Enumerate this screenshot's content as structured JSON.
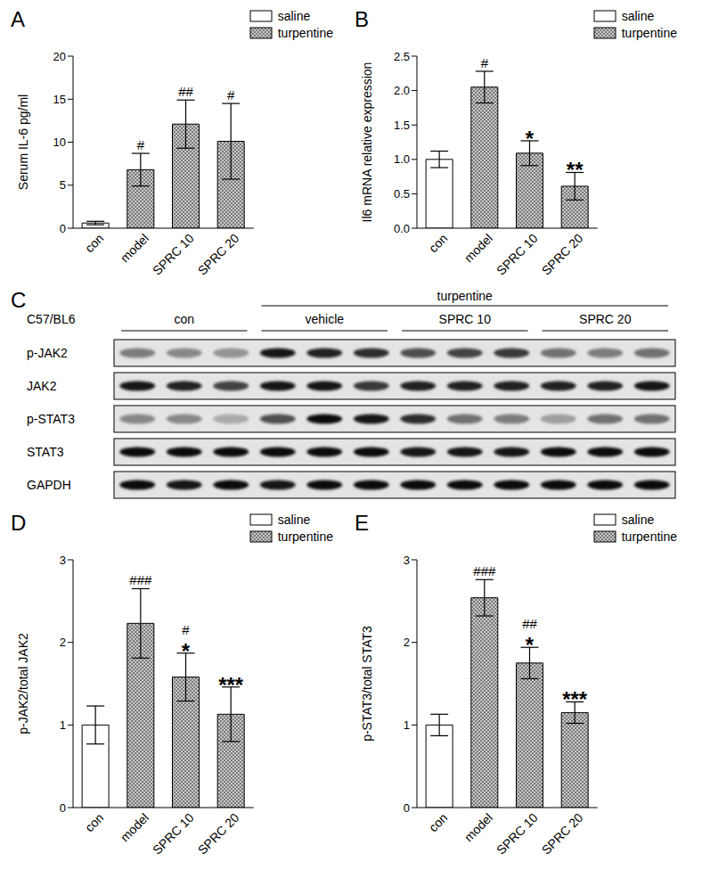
{
  "chart_data": [
    {
      "type": "bar",
      "title": "A",
      "y_label": "Serum IL-6 pg/ml",
      "categories": [
        "con",
        "model",
        "SPRC 10",
        "SPRC 20"
      ],
      "series": [
        {
          "name": "saline",
          "color": "#ffffff",
          "values": [
            0.6,
            null,
            null,
            null
          ],
          "errors": [
            0.2,
            null,
            null,
            null
          ]
        },
        {
          "name": "turpentine",
          "color": "#c8c8c8",
          "values": [
            null,
            6.8,
            12.1,
            10.1
          ],
          "errors": [
            null,
            1.9,
            2.8,
            4.4
          ]
        }
      ],
      "annotations": [
        [],
        [
          "#"
        ],
        [
          "##"
        ],
        [
          "#"
        ]
      ],
      "ylim": [
        0,
        20
      ],
      "yticks": [
        0,
        5,
        10,
        15,
        20
      ],
      "legend": "upper right"
    },
    {
      "type": "bar",
      "title": "B",
      "y_label": "Il6 mRNA relative expression",
      "categories": [
        "con",
        "model",
        "SPRC 10",
        "SPRC 20"
      ],
      "series": [
        {
          "name": "saline",
          "color": "#ffffff",
          "values": [
            1.0,
            null,
            null,
            null
          ],
          "errors": [
            0.12,
            null,
            null,
            null
          ]
        },
        {
          "name": "turpentine",
          "color": "#c8c8c8",
          "values": [
            null,
            2.05,
            1.09,
            0.61
          ],
          "errors": [
            null,
            0.23,
            0.18,
            0.2
          ]
        }
      ],
      "annotations": [
        [],
        [
          "#"
        ],
        [
          "*"
        ],
        [
          "**"
        ]
      ],
      "ylim": [
        0,
        2.5
      ],
      "yticks": [
        {
          "value": 0,
          "label": "0.0"
        },
        {
          "value": 0.5,
          "label": "0.5"
        },
        {
          "value": 1,
          "label": "1.0"
        },
        {
          "value": 1.5,
          "label": "1.5"
        },
        {
          "value": 2,
          "label": "2.0"
        },
        {
          "value": 2.5,
          "label": "2.5"
        }
      ],
      "legend": "upper right"
    },
    {
      "type": "bar",
      "title": "D",
      "y_label": "p-JAK2/total JAK2",
      "categories": [
        "con",
        "model",
        "SPRC 10",
        "SPRC 20"
      ],
      "series": [
        {
          "name": "saline",
          "color": "#ffffff",
          "values": [
            1.0,
            null,
            null,
            null
          ],
          "errors": [
            0.23,
            null,
            null,
            null
          ]
        },
        {
          "name": "turpentine",
          "color": "#c8c8c8",
          "values": [
            null,
            2.23,
            1.58,
            1.13
          ],
          "errors": [
            null,
            0.42,
            0.29,
            0.33
          ]
        }
      ],
      "annotations": [
        [],
        [
          "###"
        ],
        [
          "#",
          "*"
        ],
        [
          "***"
        ]
      ],
      "ylim": [
        0,
        3
      ],
      "yticks": [
        0,
        1,
        2,
        3
      ],
      "legend": "upper right"
    },
    {
      "type": "bar",
      "title": "E",
      "y_label": "p-STAT3/total STAT3",
      "categories": [
        "con",
        "model",
        "SPRC 10",
        "SPRC 20"
      ],
      "series": [
        {
          "name": "saline",
          "color": "#ffffff",
          "values": [
            1.0,
            null,
            null,
            null
          ],
          "errors": [
            0.13,
            null,
            null,
            null
          ]
        },
        {
          "name": "turpentine",
          "color": "#c8c8c8",
          "values": [
            null,
            2.54,
            1.75,
            1.15
          ],
          "errors": [
            null,
            0.22,
            0.19,
            0.13
          ]
        }
      ],
      "annotations": [
        [],
        [
          "###"
        ],
        [
          "##",
          "*"
        ],
        [
          "***"
        ]
      ],
      "ylim": [
        0,
        3
      ],
      "yticks": [
        0,
        1,
        2,
        3
      ],
      "legend": "upper right"
    }
  ],
  "blot": {
    "title": "C",
    "strain": "C57/BL6",
    "treatment": "turpentine",
    "groups": [
      {
        "label": "con",
        "lanes": 3,
        "treated": false
      },
      {
        "label": "vehicle",
        "lanes": 3,
        "treated": true
      },
      {
        "label": "SPRC 10",
        "lanes": 3,
        "treated": true
      },
      {
        "label": "SPRC 20",
        "lanes": 3,
        "treated": true
      }
    ],
    "rows": [
      {
        "label": "p-JAK2",
        "bands": [
          0.45,
          0.4,
          0.35,
          0.9,
          0.85,
          0.8,
          0.65,
          0.7,
          0.75,
          0.5,
          0.45,
          0.5
        ]
      },
      {
        "label": "JAK2",
        "bands": [
          0.9,
          0.85,
          0.7,
          0.9,
          0.9,
          0.75,
          0.85,
          0.85,
          0.85,
          0.85,
          0.85,
          0.9
        ]
      },
      {
        "label": "p-STAT3",
        "bands": [
          0.4,
          0.4,
          0.25,
          0.65,
          0.95,
          0.9,
          0.8,
          0.5,
          0.45,
          0.3,
          0.5,
          0.5
        ]
      },
      {
        "label": "STAT3",
        "bands": [
          0.95,
          0.95,
          0.95,
          0.95,
          0.95,
          0.95,
          0.9,
          0.9,
          0.9,
          0.95,
          0.95,
          0.95
        ]
      },
      {
        "label": "GAPDH",
        "bands": [
          0.95,
          0.9,
          0.95,
          0.9,
          0.95,
          0.95,
          0.95,
          0.95,
          0.95,
          0.95,
          0.95,
          0.95
        ]
      }
    ]
  }
}
